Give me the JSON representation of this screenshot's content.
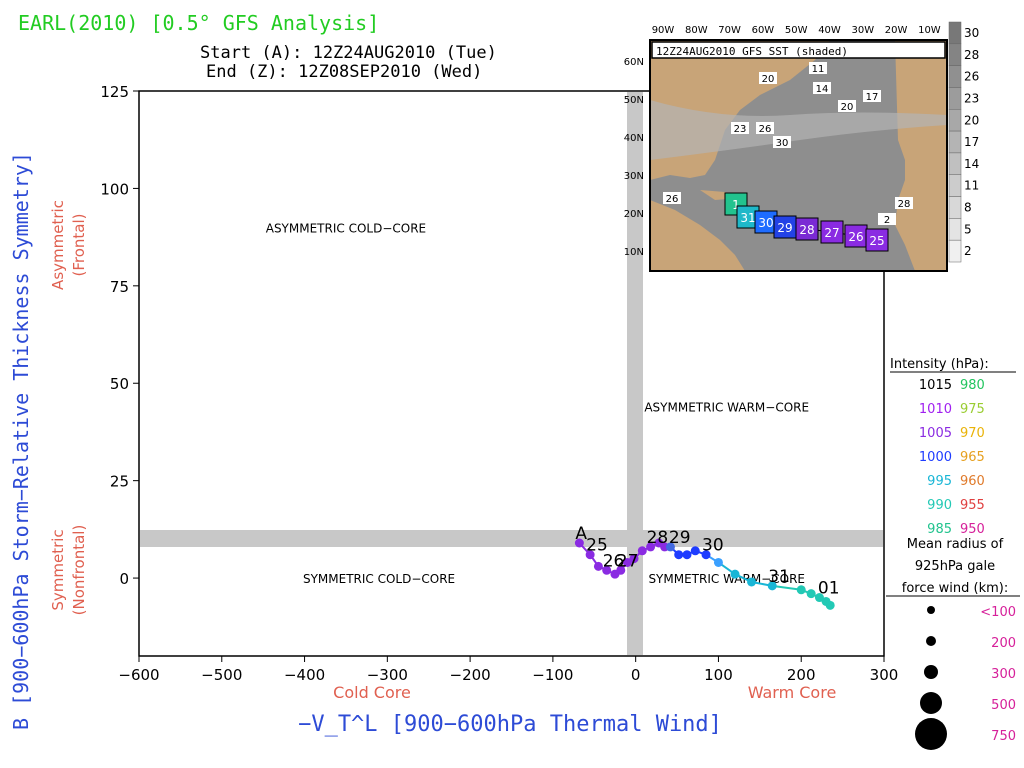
{
  "chart_data": {
    "type": "scatter",
    "title": "EARL(2010) [0.5° GFS Analysis]",
    "start_label": "Start (A): 12Z24AUG2010 (Tue)",
    "end_label": "End (Z): 12Z08SEP2010 (Wed)",
    "xlabel": "−V_T^L [900−600hPa Thermal Wind]",
    "ylabel": "B [900−600hPa Storm−Relative Thickness Symmetry]",
    "x_under_labels": [
      "Cold Core",
      "Warm Core"
    ],
    "y_side_labels": [
      {
        "line1": "Asymmetric",
        "line2": "(Frontal)"
      },
      {
        "line1": "Symmetric",
        "line2": "(Nonfrontal)"
      }
    ],
    "xlim": [
      -600,
      300
    ],
    "ylim": [
      -20,
      125
    ],
    "xticks": [
      -600,
      -500,
      -400,
      -300,
      -200,
      -100,
      0,
      100,
      200,
      300
    ],
    "xtick_labels": [
      "−600",
      "−500",
      "−400",
      "−300",
      "−200",
      "−100",
      "0",
      "100",
      "200",
      "300"
    ],
    "yticks": [
      0,
      25,
      50,
      75,
      100,
      125
    ],
    "ytick_labels": [
      "0",
      "25",
      "50",
      "75",
      "100",
      "125"
    ],
    "quadrant_labels": [
      {
        "text": "ASYMMETRIC COLD−CORE",
        "x": -350,
        "y": 90
      },
      {
        "text": "ASYMMETRIC WARM−CORE",
        "x": 110,
        "y": 44
      },
      {
        "text": "SYMMETRIC COLD−CORE",
        "x": -310,
        "y": 0
      },
      {
        "text": "SYMMETRIC WARM−CORE",
        "x": 110,
        "y": 0
      }
    ],
    "track": [
      {
        "x": -68,
        "y": 9,
        "color": "#8a2be2"
      },
      {
        "x": -55,
        "y": 6,
        "color": "#8a2be2"
      },
      {
        "x": -45,
        "y": 3,
        "color": "#8a2be2"
      },
      {
        "x": -35,
        "y": 2,
        "color": "#8a2be2"
      },
      {
        "x": -25,
        "y": 1,
        "color": "#8a2be2"
      },
      {
        "x": -18,
        "y": 2,
        "color": "#8a2be2"
      },
      {
        "x": -10,
        "y": 4,
        "color": "#8a2be2"
      },
      {
        "x": -2,
        "y": 5,
        "color": "#8a2be2"
      },
      {
        "x": 8,
        "y": 7,
        "color": "#8a2be2"
      },
      {
        "x": 18,
        "y": 8,
        "color": "#8a2be2"
      },
      {
        "x": 28,
        "y": 9,
        "color": "#8a2be2"
      },
      {
        "x": 35,
        "y": 8,
        "color": "#8a2be2"
      },
      {
        "x": 42,
        "y": 8,
        "color": "#4169e1"
      },
      {
        "x": 52,
        "y": 6,
        "color": "#1e3cff"
      },
      {
        "x": 62,
        "y": 6,
        "color": "#1e3cff"
      },
      {
        "x": 72,
        "y": 7,
        "color": "#1e3cff"
      },
      {
        "x": 85,
        "y": 6,
        "color": "#1e3cff"
      },
      {
        "x": 100,
        "y": 4,
        "color": "#3aa0ff"
      },
      {
        "x": 120,
        "y": 1,
        "color": "#19b6d6"
      },
      {
        "x": 140,
        "y": -1,
        "color": "#19b6d6"
      },
      {
        "x": 165,
        "y": -2,
        "color": "#19b6d6"
      },
      {
        "x": 200,
        "y": -3,
        "color": "#23c9b5"
      },
      {
        "x": 212,
        "y": -4,
        "color": "#23c9b5"
      },
      {
        "x": 222,
        "y": -5,
        "color": "#23c9b5"
      },
      {
        "x": 230,
        "y": -6,
        "color": "#23c9b5"
      },
      {
        "x": 235,
        "y": -7,
        "color": "#23c9b5"
      }
    ],
    "track_labels": [
      {
        "text": "A",
        "x": -68,
        "y": 9
      },
      {
        "text": "25",
        "x": -55,
        "y": 6
      },
      {
        "text": "26",
        "x": -35,
        "y": 2
      },
      {
        "text": "27",
        "x": -18,
        "y": 2
      },
      {
        "text": "28",
        "x": 18,
        "y": 8
      },
      {
        "text": "29",
        "x": 45,
        "y": 8
      },
      {
        "text": "30",
        "x": 85,
        "y": 6
      },
      {
        "text": "31",
        "x": 165,
        "y": -2
      },
      {
        "text": "01",
        "x": 225,
        "y": -5
      }
    ]
  },
  "inset": {
    "title": "12Z24AUG2010 GFS SST (shaded)",
    "lon_labels": [
      "90W",
      "80W",
      "70W",
      "60W",
      "50W",
      "40W",
      "30W",
      "20W",
      "10W"
    ],
    "lat_labels": [
      "60N",
      "50N",
      "40N",
      "30N",
      "20N",
      "10N"
    ],
    "colorbar_labels": [
      "30",
      "28",
      "26",
      "23",
      "20",
      "17",
      "14",
      "11",
      "8",
      "5",
      "2"
    ],
    "sst_labels": [
      "11",
      "14",
      "17",
      "20",
      "20",
      "23",
      "26",
      "30",
      "26",
      "2",
      "28"
    ],
    "track_boxes": [
      {
        "text": "1",
        "color": "#22c38e"
      },
      {
        "text": "31",
        "color": "#1fb8c9"
      },
      {
        "text": "30",
        "color": "#1e6cff"
      },
      {
        "text": "29",
        "color": "#2342e6"
      },
      {
        "text": "28",
        "color": "#7a2ad4"
      },
      {
        "text": "27",
        "color": "#8a2be2"
      },
      {
        "text": "26",
        "color": "#8a2be2"
      },
      {
        "text": "25",
        "color": "#8a2be2"
      }
    ]
  },
  "legend": {
    "intensity_title": "Intensity (hPa):",
    "intensity_rows": [
      {
        "left": "1015",
        "left_color": "#000000",
        "right": "980",
        "right_color": "#22c55e"
      },
      {
        "left": "1010",
        "left_color": "#a020f0",
        "right": "975",
        "right_color": "#9acd32"
      },
      {
        "left": "1005",
        "left_color": "#8a2be2",
        "right": "970",
        "right_color": "#eab308"
      },
      {
        "left": "1000",
        "left_color": "#1e3cff",
        "right": "965",
        "right_color": "#e6a020"
      },
      {
        "left": "995",
        "left_color": "#19b6d6",
        "right": "960",
        "right_color": "#e07a2a"
      },
      {
        "left": "990",
        "left_color": "#23c9b5",
        "right": "955",
        "right_color": "#e04040"
      },
      {
        "left": "985",
        "left_color": "#22c38e",
        "right": "950",
        "right_color": "#d6209a"
      }
    ],
    "radius_title_lines": [
      "Mean radius of",
      "925hPa gale",
      "force wind (km):"
    ],
    "radius_rows": [
      {
        "label": "<100"
      },
      {
        "label": "200"
      },
      {
        "label": "300"
      },
      {
        "label": "500"
      },
      {
        "label": "750"
      }
    ]
  }
}
